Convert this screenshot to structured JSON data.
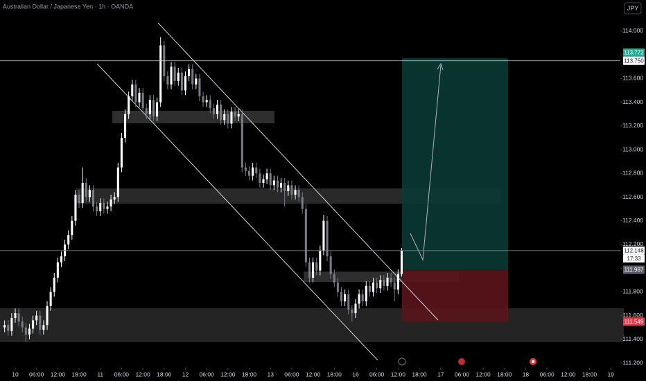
{
  "chart_data": {
    "type": "candlestick",
    "title": "Australian Dollar / Japanese Yen · 1h · OANDA",
    "currency": "JPY",
    "up_color": "#ffffff",
    "down_color": "#787b86",
    "grid": false,
    "open": [
      111.5,
      111.52,
      111.47,
      111.58,
      111.62,
      111.55,
      111.5,
      111.44,
      111.49,
      111.56,
      111.6,
      111.48,
      111.52,
      111.68,
      111.8,
      111.92,
      112.05,
      112.1,
      112.2,
      112.28,
      112.4,
      112.62,
      112.55,
      112.72,
      112.6,
      112.66,
      112.52,
      112.48,
      112.55,
      112.5,
      112.52,
      112.58,
      112.6,
      112.85,
      113.1,
      113.3,
      113.45,
      113.55,
      113.4,
      113.48,
      113.35,
      113.3,
      113.42,
      113.28,
      113.4,
      113.88,
      113.62,
      113.55,
      113.7,
      113.58,
      113.65,
      113.5,
      113.62,
      113.68,
      113.55,
      113.6,
      113.45,
      113.4,
      113.42,
      113.35,
      113.3,
      113.38,
      113.25,
      113.3,
      113.22,
      113.32,
      113.28,
      113.3,
      112.85,
      112.82,
      112.78,
      112.85,
      112.8,
      112.72,
      112.75,
      112.8,
      112.7,
      112.74,
      112.68,
      112.72,
      112.65,
      112.7,
      112.62,
      112.66,
      112.6,
      112.5,
      112.05,
      111.92,
      112.05,
      111.98,
      112.15,
      112.4,
      112.1,
      111.95,
      111.88,
      111.8,
      111.72,
      111.78,
      111.65,
      111.62,
      111.7,
      111.78,
      111.72,
      111.85,
      111.8,
      111.88,
      111.83,
      111.9,
      111.85,
      111.92,
      111.88,
      111.82,
      111.95
    ],
    "high": [
      111.56,
      111.56,
      111.62,
      111.66,
      111.66,
      111.59,
      111.54,
      111.53,
      111.6,
      111.64,
      111.64,
      111.56,
      111.72,
      111.84,
      111.96,
      112.09,
      112.14,
      112.24,
      112.32,
      112.44,
      112.66,
      112.66,
      112.85,
      112.76,
      112.7,
      112.7,
      112.56,
      112.59,
      112.59,
      112.56,
      112.62,
      112.64,
      112.89,
      113.14,
      113.34,
      113.49,
      113.59,
      113.59,
      113.52,
      113.52,
      113.39,
      113.46,
      113.46,
      113.44,
      113.95,
      113.92,
      113.66,
      113.74,
      113.74,
      113.69,
      113.69,
      113.66,
      113.72,
      113.72,
      113.64,
      113.64,
      113.49,
      113.46,
      113.46,
      113.39,
      113.42,
      113.42,
      113.34,
      113.34,
      113.36,
      113.36,
      113.34,
      113.34,
      112.89,
      112.86,
      112.89,
      112.89,
      112.84,
      112.79,
      112.84,
      112.84,
      112.78,
      112.78,
      112.76,
      112.76,
      112.74,
      112.74,
      112.7,
      112.7,
      112.64,
      112.54,
      112.09,
      112.09,
      112.09,
      112.19,
      112.45,
      112.44,
      112.14,
      111.99,
      111.92,
      111.84,
      111.82,
      111.82,
      111.69,
      111.74,
      111.82,
      111.82,
      111.89,
      111.89,
      111.92,
      111.92,
      111.94,
      111.94,
      111.96,
      111.96,
      111.92,
      111.99,
      112.17
    ],
    "low": [
      111.46,
      111.43,
      111.43,
      111.54,
      111.51,
      111.46,
      111.38,
      111.4,
      111.45,
      111.52,
      111.44,
      111.44,
      111.48,
      111.64,
      111.76,
      111.88,
      112.01,
      112.06,
      112.16,
      112.24,
      112.36,
      112.51,
      112.51,
      112.56,
      112.56,
      112.48,
      112.44,
      112.44,
      112.46,
      112.46,
      112.48,
      112.54,
      112.56,
      112.81,
      113.06,
      113.26,
      113.41,
      113.36,
      113.36,
      113.31,
      113.26,
      113.26,
      113.24,
      113.24,
      113.36,
      113.58,
      113.51,
      113.51,
      113.54,
      113.54,
      113.46,
      113.46,
      113.58,
      113.51,
      113.51,
      113.41,
      113.36,
      113.36,
      113.31,
      113.26,
      113.26,
      113.21,
      113.21,
      113.18,
      113.18,
      113.24,
      113.24,
      112.81,
      112.78,
      112.74,
      112.74,
      112.76,
      112.68,
      112.68,
      112.71,
      112.66,
      112.66,
      112.64,
      112.64,
      112.52,
      112.61,
      112.58,
      112.58,
      112.56,
      112.46,
      112.01,
      111.88,
      111.88,
      111.94,
      111.94,
      112.11,
      112.06,
      111.91,
      111.84,
      111.76,
      111.68,
      111.68,
      111.61,
      111.55,
      111.58,
      111.66,
      111.68,
      111.68,
      111.76,
      111.76,
      111.79,
      111.79,
      111.81,
      111.81,
      111.84,
      111.72,
      111.78,
      111.93
    ],
    "close": [
      111.52,
      111.47,
      111.58,
      111.62,
      111.55,
      111.5,
      111.44,
      111.49,
      111.56,
      111.6,
      111.48,
      111.52,
      111.68,
      111.8,
      111.92,
      112.05,
      112.1,
      112.2,
      112.28,
      112.4,
      112.62,
      112.55,
      112.72,
      112.6,
      112.66,
      112.52,
      112.48,
      112.55,
      112.5,
      112.52,
      112.58,
      112.6,
      112.85,
      113.1,
      113.3,
      113.45,
      113.55,
      113.4,
      113.48,
      113.35,
      113.3,
      113.42,
      113.28,
      113.4,
      113.88,
      113.62,
      113.55,
      113.7,
      113.58,
      113.65,
      113.5,
      113.62,
      113.68,
      113.55,
      113.6,
      113.45,
      113.4,
      113.42,
      113.35,
      113.3,
      113.38,
      113.25,
      113.3,
      113.22,
      113.32,
      113.28,
      113.3,
      112.85,
      112.82,
      112.78,
      112.85,
      112.8,
      112.72,
      112.75,
      112.8,
      112.7,
      112.74,
      112.68,
      112.72,
      112.65,
      112.7,
      112.62,
      112.66,
      112.6,
      112.5,
      112.05,
      111.92,
      112.05,
      111.98,
      112.15,
      112.4,
      112.1,
      111.95,
      111.88,
      111.8,
      111.72,
      111.78,
      111.65,
      111.62,
      111.7,
      111.78,
      111.72,
      111.85,
      111.8,
      111.88,
      111.83,
      111.9,
      111.85,
      111.92,
      111.88,
      111.82,
      111.95,
      112.148
    ],
    "xlim": [
      -1.3,
      173.7
    ],
    "xticks": [
      {
        "value": 3,
        "label": "10"
      },
      {
        "value": 9,
        "label": "06:00"
      },
      {
        "value": 15,
        "label": "12:00"
      },
      {
        "value": 21,
        "label": "18:00"
      },
      {
        "value": 27,
        "label": "11"
      },
      {
        "value": 33,
        "label": "06:00"
      },
      {
        "value": 39,
        "label": "12:00"
      },
      {
        "value": 45,
        "label": "18:00"
      },
      {
        "value": 51,
        "label": "12"
      },
      {
        "value": 57,
        "label": "06:00"
      },
      {
        "value": 63,
        "label": "12:00"
      },
      {
        "value": 69,
        "label": "18:00"
      },
      {
        "value": 75,
        "label": "13"
      },
      {
        "value": 81,
        "label": "06:00"
      },
      {
        "value": 87,
        "label": "12:00"
      },
      {
        "value": 93,
        "label": "18:00"
      },
      {
        "value": 99,
        "label": "16"
      },
      {
        "value": 105,
        "label": "06:00"
      },
      {
        "value": 111,
        "label": "12:00"
      },
      {
        "value": 117,
        "label": "18:00"
      },
      {
        "value": 123,
        "label": "17"
      },
      {
        "value": 129,
        "label": "06:00"
      },
      {
        "value": 135,
        "label": "12:00"
      },
      {
        "value": 141,
        "label": "18:00"
      },
      {
        "value": 147,
        "label": "18"
      },
      {
        "value": 153,
        "label": "06:00"
      },
      {
        "value": 159,
        "label": "12:00"
      },
      {
        "value": 165,
        "label": "18:00"
      },
      {
        "value": 171,
        "label": "19"
      }
    ],
    "ylim": [
      111.165,
      114.263
    ],
    "yticks": [
      {
        "value": 111.2,
        "label": "111.200"
      },
      {
        "value": 111.4,
        "label": "111.400"
      },
      {
        "value": 111.6,
        "label": "111.600"
      },
      {
        "value": 111.8,
        "label": "111.800"
      },
      {
        "value": 112.0,
        "label": "112.000"
      },
      {
        "value": 112.2,
        "label": "112.200"
      },
      {
        "value": 112.4,
        "label": "112.400"
      },
      {
        "value": 112.6,
        "label": "112.600"
      },
      {
        "value": 112.8,
        "label": "112.800"
      },
      {
        "value": 113.0,
        "label": "113.000"
      },
      {
        "value": 113.2,
        "label": "113.200"
      },
      {
        "value": 113.4,
        "label": "113.400"
      },
      {
        "value": 113.6,
        "label": "113.600"
      },
      {
        "value": 113.8,
        "label": "113.800"
      },
      {
        "value": 114.0,
        "label": "114.000"
      }
    ],
    "hline": {
      "value": 113.75,
      "label": "113.750"
    },
    "last_price": {
      "value": 112.148,
      "label": "112.148",
      "countdown": "17:33"
    },
    "position": {
      "target": {
        "value": 113.772,
        "label": "113.772"
      },
      "entry": {
        "value": 111.987,
        "label": "111.987"
      },
      "stop": {
        "value": 111.549,
        "label": "111.549"
      }
    }
  }
}
